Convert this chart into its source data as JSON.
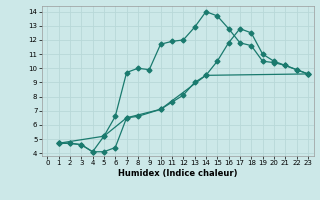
{
  "xlabel": "Humidex (Indice chaleur)",
  "bg_color": "#cce8e8",
  "line_color": "#1a7a6e",
  "grid_color": "#b8d8d8",
  "xlim": [
    -0.5,
    23.5
  ],
  "ylim": [
    3.8,
    14.4
  ],
  "xticks": [
    0,
    1,
    2,
    3,
    4,
    5,
    6,
    7,
    8,
    9,
    10,
    11,
    12,
    13,
    14,
    15,
    16,
    17,
    18,
    19,
    20,
    21,
    22,
    23
  ],
  "yticks": [
    4,
    5,
    6,
    7,
    8,
    9,
    10,
    11,
    12,
    13,
    14
  ],
  "line1_x": [
    1,
    2,
    3,
    4,
    5,
    6,
    7,
    8,
    10,
    11,
    12,
    13,
    14,
    15,
    16,
    17,
    18,
    19,
    20,
    21,
    22,
    23
  ],
  "line1_y": [
    4.7,
    4.7,
    4.6,
    4.1,
    4.1,
    4.4,
    6.5,
    6.6,
    7.1,
    7.6,
    8.1,
    9.0,
    9.5,
    10.5,
    11.8,
    12.8,
    12.5,
    11.0,
    10.5,
    10.2,
    9.9,
    9.6
  ],
  "line2_x": [
    1,
    2,
    3,
    4,
    5,
    6,
    7,
    8,
    9,
    10,
    11,
    12,
    13,
    14,
    15,
    16,
    17,
    18,
    19,
    20,
    21,
    22,
    23
  ],
  "line2_y": [
    4.7,
    4.7,
    4.6,
    4.1,
    5.2,
    6.6,
    9.7,
    10.0,
    9.9,
    11.7,
    11.9,
    12.0,
    12.9,
    14.0,
    13.7,
    12.8,
    11.8,
    11.6,
    10.5,
    10.4,
    10.2,
    9.9,
    9.6
  ],
  "line3_x": [
    1,
    5,
    7,
    10,
    14,
    23
  ],
  "line3_y": [
    4.7,
    5.2,
    6.5,
    7.1,
    9.5,
    9.6
  ],
  "markersize": 2.5,
  "linewidth": 0.9,
  "tick_fontsize": 5.0,
  "xlabel_fontsize": 6.0
}
